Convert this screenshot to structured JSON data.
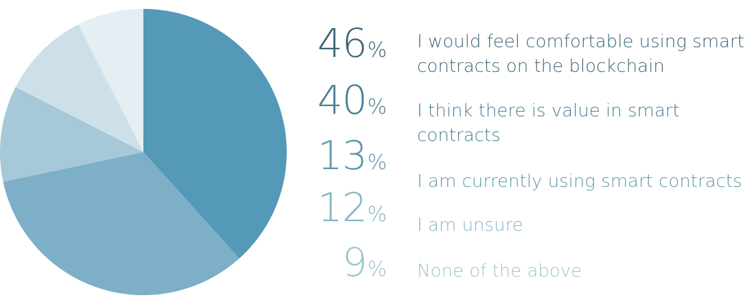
{
  "chart_data": {
    "type": "pie",
    "slices": [
      {
        "percent_label": "46",
        "percent_sign": "%",
        "value": 46,
        "label_line1": "I would feel comfortable using smart",
        "label_line2": "contracts on the blockchain",
        "text_color": "#3e6676",
        "slice_color": "#5499b7"
      },
      {
        "percent_label": "40",
        "percent_sign": "%",
        "value": 40,
        "label_line1": "I think there is value in smart",
        "label_line2": "contracts",
        "text_color": "#4a7f96",
        "slice_color": "#7db0c8"
      },
      {
        "percent_label": "13",
        "percent_sign": "%",
        "value": 13,
        "label_line1": "I am currently using smart contracts",
        "label_line2": "",
        "text_color": "#5e97ae",
        "slice_color": "#a7c8d8"
      },
      {
        "percent_label": "12",
        "percent_sign": "%",
        "value": 12,
        "label_line1": "I am unsure",
        "label_line2": "",
        "text_color": "#86b4c6",
        "slice_color": "#cde0e9"
      },
      {
        "percent_label": "9",
        "percent_sign": "%",
        "value": 9,
        "label_line1": "None of the above",
        "label_line2": "",
        "text_color": "#9ec3d1",
        "slice_color": "#e4eef3"
      }
    ]
  }
}
